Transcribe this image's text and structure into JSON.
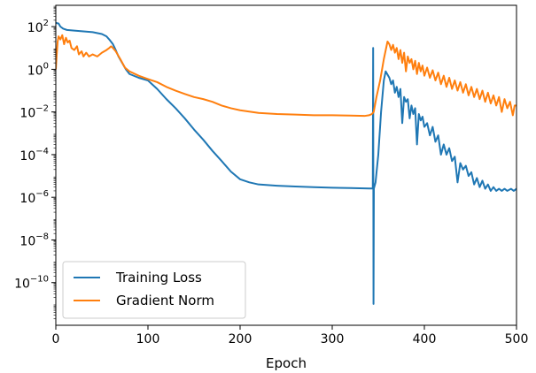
{
  "chart_data": {
    "type": "line",
    "title": "",
    "xlabel": "Epoch",
    "ylabel": "",
    "yscale": "log",
    "xlim": [
      0,
      500
    ],
    "ylim": [
      1e-12,
      1000.0
    ],
    "x_ticks": [
      0,
      100,
      200,
      300,
      400,
      500
    ],
    "x_tick_labels": [
      "0",
      "100",
      "200",
      "300",
      "400",
      "500"
    ],
    "y_ticks": [
      1e-10,
      1e-08,
      1e-06,
      0.0001,
      0.01,
      1.0,
      100.0
    ],
    "y_tick_labels": [
      {
        "base": "10",
        "exp": "−10"
      },
      {
        "base": "10",
        "exp": "−8"
      },
      {
        "base": "10",
        "exp": "−6"
      },
      {
        "base": "10",
        "exp": "−4"
      },
      {
        "base": "10",
        "exp": "−2"
      },
      {
        "base": "10",
        "exp": "0"
      },
      {
        "base": "10",
        "exp": "2"
      }
    ],
    "grid": false,
    "legend_position": "lower-left",
    "series": [
      {
        "name": "Training Loss",
        "color": "#1f77b4",
        "points": [
          [
            0,
            150
          ],
          [
            3,
            140
          ],
          [
            5,
            100
          ],
          [
            8,
            80
          ],
          [
            12,
            70
          ],
          [
            20,
            65
          ],
          [
            30,
            60
          ],
          [
            40,
            55
          ],
          [
            50,
            45
          ],
          [
            55,
            35
          ],
          [
            58,
            25
          ],
          [
            62,
            15
          ],
          [
            65,
            8
          ],
          [
            68,
            4
          ],
          [
            72,
            2
          ],
          [
            76,
            1
          ],
          [
            80,
            0.6
          ],
          [
            90,
            0.4
          ],
          [
            100,
            0.3
          ],
          [
            110,
            0.12
          ],
          [
            120,
            0.04
          ],
          [
            130,
            0.015
          ],
          [
            140,
            0.005
          ],
          [
            150,
            0.0015
          ],
          [
            160,
            0.0005
          ],
          [
            170,
            0.00015
          ],
          [
            180,
            5e-05
          ],
          [
            190,
            1.6e-05
          ],
          [
            200,
            7e-06
          ],
          [
            210,
            5e-06
          ],
          [
            220,
            4e-06
          ],
          [
            240,
            3.5e-06
          ],
          [
            260,
            3.2e-06
          ],
          [
            280,
            3e-06
          ],
          [
            300,
            2.8e-06
          ],
          [
            320,
            2.7e-06
          ],
          [
            340,
            2.6e-06
          ],
          [
            344,
            2.6e-06
          ],
          [
            344.4,
            10.0
          ],
          [
            344.8,
            1e-11
          ],
          [
            345.2,
            2.6e-06
          ],
          [
            347,
            5e-06
          ],
          [
            350,
            0.0001
          ],
          [
            353,
            0.01
          ],
          [
            356,
            0.3
          ],
          [
            358,
            0.8
          ],
          [
            362,
            0.4
          ],
          [
            364,
            0.2
          ],
          [
            366,
            0.3
          ],
          [
            368,
            0.08
          ],
          [
            370,
            0.15
          ],
          [
            372,
            0.05
          ],
          [
            374,
            0.12
          ],
          [
            376,
            0.003
          ],
          [
            378,
            0.05
          ],
          [
            380,
            0.03
          ],
          [
            382,
            0.04
          ],
          [
            384,
            0.005
          ],
          [
            386,
            0.02
          ],
          [
            388,
            0.008
          ],
          [
            390,
            0.015
          ],
          [
            392,
            0.0003
          ],
          [
            394,
            0.008
          ],
          [
            396,
            0.004
          ],
          [
            398,
            0.006
          ],
          [
            400,
            0.002
          ],
          [
            403,
            0.003
          ],
          [
            406,
            0.0008
          ],
          [
            409,
            0.002
          ],
          [
            412,
            0.0004
          ],
          [
            415,
            0.0008
          ],
          [
            418,
            0.0001
          ],
          [
            421,
            0.0003
          ],
          [
            424,
            0.0001
          ],
          [
            427,
            0.0002
          ],
          [
            430,
            5e-05
          ],
          [
            433,
            8e-05
          ],
          [
            436,
            5e-06
          ],
          [
            439,
            4e-05
          ],
          [
            442,
            2e-05
          ],
          [
            445,
            3e-05
          ],
          [
            448,
            1e-05
          ],
          [
            451,
            1.5e-05
          ],
          [
            454,
            4e-06
          ],
          [
            457,
            8e-06
          ],
          [
            460,
            3e-06
          ],
          [
            463,
            6e-06
          ],
          [
            466,
            2.5e-06
          ],
          [
            469,
            4e-06
          ],
          [
            472,
            2e-06
          ],
          [
            475,
            3e-06
          ],
          [
            478,
            2e-06
          ],
          [
            481,
            2.5e-06
          ],
          [
            484,
            2e-06
          ],
          [
            487,
            2.5e-06
          ],
          [
            490,
            2e-06
          ],
          [
            494,
            2.5e-06
          ],
          [
            497,
            2e-06
          ],
          [
            500,
            2.5e-06
          ]
        ]
      },
      {
        "name": "Gradient Norm",
        "color": "#ff7f0e",
        "points": [
          [
            0,
            1
          ],
          [
            1,
            5
          ],
          [
            2,
            20
          ],
          [
            3,
            35
          ],
          [
            5,
            25
          ],
          [
            7,
            40
          ],
          [
            9,
            15
          ],
          [
            11,
            30
          ],
          [
            13,
            18
          ],
          [
            15,
            22
          ],
          [
            17,
            10
          ],
          [
            20,
            8
          ],
          [
            23,
            12
          ],
          [
            25,
            5
          ],
          [
            28,
            7
          ],
          [
            30,
            4
          ],
          [
            33,
            6
          ],
          [
            36,
            4
          ],
          [
            40,
            5
          ],
          [
            45,
            4
          ],
          [
            50,
            6
          ],
          [
            55,
            8
          ],
          [
            58,
            10
          ],
          [
            60,
            12
          ],
          [
            62,
            10
          ],
          [
            65,
            7
          ],
          [
            70,
            3
          ],
          [
            75,
            1.2
          ],
          [
            80,
            0.8
          ],
          [
            90,
            0.5
          ],
          [
            100,
            0.35
          ],
          [
            110,
            0.25
          ],
          [
            120,
            0.15
          ],
          [
            130,
            0.1
          ],
          [
            140,
            0.07
          ],
          [
            150,
            0.05
          ],
          [
            160,
            0.04
          ],
          [
            170,
            0.03
          ],
          [
            180,
            0.02
          ],
          [
            190,
            0.015
          ],
          [
            200,
            0.012
          ],
          [
            220,
            0.009
          ],
          [
            240,
            0.008
          ],
          [
            260,
            0.0075
          ],
          [
            280,
            0.007
          ],
          [
            300,
            0.007
          ],
          [
            320,
            0.0068
          ],
          [
            335,
            0.0065
          ],
          [
            340,
            0.007
          ],
          [
            343,
            0.008
          ],
          [
            345,
            0.01
          ],
          [
            348,
            0.05
          ],
          [
            352,
            0.3
          ],
          [
            356,
            3
          ],
          [
            360,
            20
          ],
          [
            362,
            15
          ],
          [
            364,
            8
          ],
          [
            366,
            14
          ],
          [
            368,
            6
          ],
          [
            370,
            10
          ],
          [
            372,
            3
          ],
          [
            374,
            8
          ],
          [
            376,
            2
          ],
          [
            378,
            6
          ],
          [
            380,
            0.8
          ],
          [
            382,
            4
          ],
          [
            384,
            2
          ],
          [
            386,
            3
          ],
          [
            388,
            1
          ],
          [
            390,
            2.5
          ],
          [
            392,
            0.6
          ],
          [
            394,
            2
          ],
          [
            396,
            0.8
          ],
          [
            398,
            1.5
          ],
          [
            400,
            0.5
          ],
          [
            403,
            1.2
          ],
          [
            406,
            0.4
          ],
          [
            409,
            0.9
          ],
          [
            412,
            0.3
          ],
          [
            415,
            0.7
          ],
          [
            418,
            0.2
          ],
          [
            421,
            0.5
          ],
          [
            424,
            0.15
          ],
          [
            427,
            0.4
          ],
          [
            430,
            0.12
          ],
          [
            433,
            0.3
          ],
          [
            436,
            0.1
          ],
          [
            439,
            0.25
          ],
          [
            442,
            0.08
          ],
          [
            445,
            0.2
          ],
          [
            448,
            0.06
          ],
          [
            451,
            0.15
          ],
          [
            454,
            0.05
          ],
          [
            457,
            0.12
          ],
          [
            460,
            0.04
          ],
          [
            463,
            0.1
          ],
          [
            466,
            0.03
          ],
          [
            469,
            0.08
          ],
          [
            472,
            0.025
          ],
          [
            475,
            0.06
          ],
          [
            478,
            0.02
          ],
          [
            481,
            0.05
          ],
          [
            484,
            0.01
          ],
          [
            487,
            0.04
          ],
          [
            490,
            0.015
          ],
          [
            493,
            0.03
          ],
          [
            496,
            0.007
          ],
          [
            498,
            0.02
          ],
          [
            500,
            0.02
          ]
        ]
      }
    ]
  }
}
